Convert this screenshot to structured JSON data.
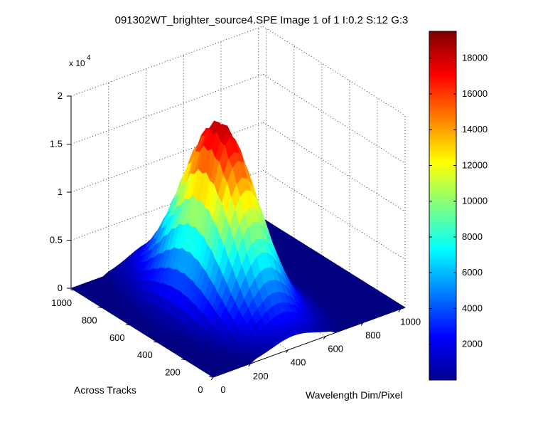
{
  "chart_data": {
    "type": "surface",
    "title": "091302WT_brighter_source4.SPE  Image 1 of 1  I:0.2  S:12  G:3",
    "xlabel": "Wavelength Dim/Pixel",
    "ylabel": "Across Tracks",
    "zlabel": "",
    "z_exponent_label": "x 10",
    "z_exponent": "4",
    "x_ticks": [
      "0",
      "200",
      "400",
      "600",
      "800",
      "1000"
    ],
    "y_ticks": [
      "0",
      "200",
      "400",
      "600",
      "800",
      "1000"
    ],
    "z_ticks": [
      "0",
      "0.5",
      "1",
      "1.5",
      "2"
    ],
    "xlim": [
      0,
      1024
    ],
    "ylim": [
      0,
      1024
    ],
    "zlim": [
      0,
      20000
    ],
    "grid": true,
    "colormap": "jet",
    "peak_value": 18500,
    "peak_center_x": 430,
    "peak_center_y": 530,
    "peak_sigma_x": 120,
    "peak_sigma_y": 230,
    "colorbar": {
      "ticks": [
        "2000",
        "4000",
        "6000",
        "8000",
        "10000",
        "12000",
        "14000",
        "16000",
        "18000"
      ],
      "range": [
        0,
        19500
      ]
    }
  }
}
